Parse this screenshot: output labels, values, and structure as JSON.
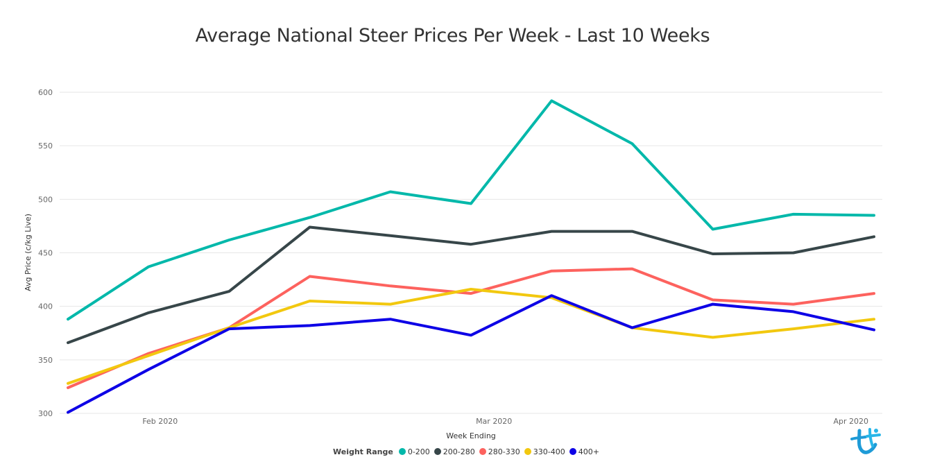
{
  "chart_data": {
    "type": "line",
    "title": "Average National Steer Prices Per Week - Last 10 Weeks",
    "xlabel": "Week Ending",
    "ylabel": "Avg Price (c/kg Live)",
    "ylim": [
      300,
      600
    ],
    "yticks": [
      "300",
      "350",
      "400",
      "450",
      "500",
      "550",
      "600"
    ],
    "x": [
      "2020-01-24",
      "2020-01-31",
      "2020-02-07",
      "2020-02-14",
      "2020-02-21",
      "2020-02-28",
      "2020-03-06",
      "2020-03-13",
      "2020-03-20",
      "2020-03-27",
      "2020-04-03"
    ],
    "xticks": [
      {
        "label": "Feb 2020",
        "date": "2020-02-01"
      },
      {
        "label": "Mar 2020",
        "date": "2020-03-01"
      },
      {
        "label": "Apr 2020",
        "date": "2020-04-01"
      }
    ],
    "grid": true,
    "legend_title": "Weight Range",
    "legend_position": "bottom",
    "series": [
      {
        "name": "0-200",
        "color": "#01B8AA",
        "values": [
          388,
          437,
          462,
          483,
          507,
          496,
          592,
          552,
          472,
          486,
          485
        ]
      },
      {
        "name": "200-280",
        "color": "#374649",
        "values": [
          366,
          394,
          414,
          474,
          466,
          458,
          470,
          470,
          449,
          450,
          465
        ]
      },
      {
        "name": "280-330",
        "color": "#FD625E",
        "values": [
          324,
          356,
          380,
          428,
          419,
          412,
          433,
          435,
          406,
          402,
          412
        ]
      },
      {
        "name": "330-400",
        "color": "#F2C80F",
        "values": [
          328,
          354,
          380,
          405,
          402,
          416,
          408,
          380,
          371,
          379,
          388
        ]
      },
      {
        "name": "400+",
        "color": "#0D00E6",
        "values": [
          301,
          341,
          379,
          382,
          388,
          373,
          410,
          380,
          402,
          395,
          378
        ]
      }
    ]
  }
}
